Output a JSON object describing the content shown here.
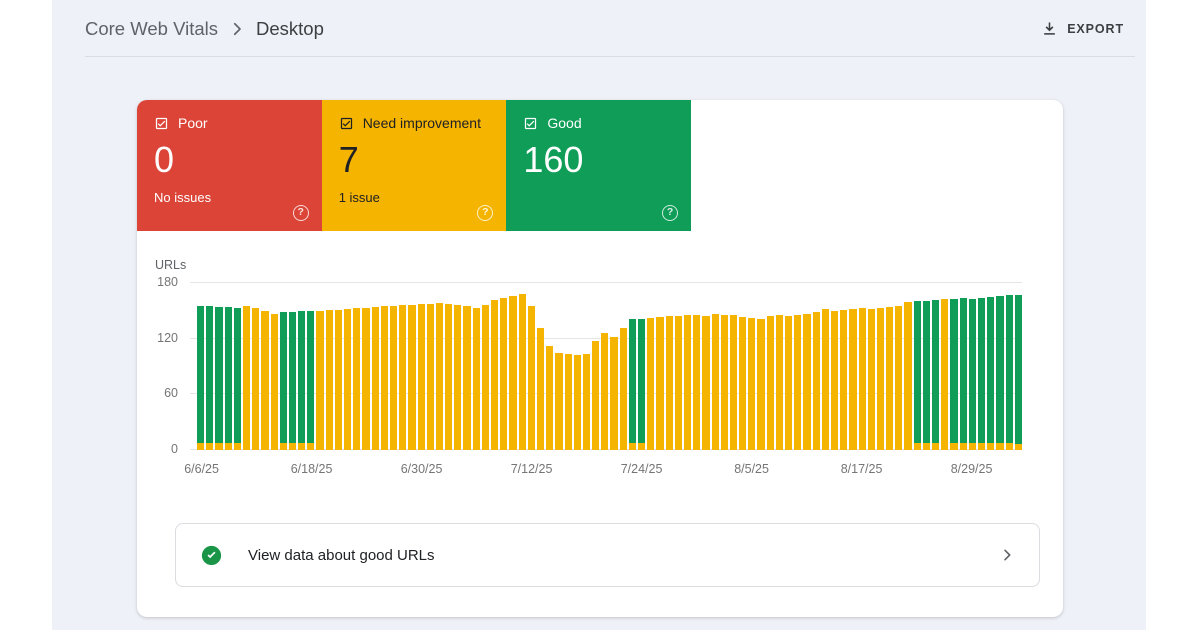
{
  "header": {
    "breadcrumb": {
      "root": "Core Web Vitals",
      "current": "Desktop"
    },
    "export_label": "EXPORT"
  },
  "summary_cards": [
    {
      "id": "poor",
      "label": "Poor",
      "value": "0",
      "sub": "No issues",
      "bg": "#db4437",
      "text": "#ffffff",
      "checkbox_color": "#ffffff"
    },
    {
      "id": "need-improvement",
      "label": "Need improvement",
      "value": "7",
      "sub": "1 issue",
      "bg": "#f4b400",
      "text": "#202124",
      "checkbox_color": "#202124"
    },
    {
      "id": "good",
      "label": "Good",
      "value": "160",
      "sub": "",
      "bg": "#0f9d58",
      "text": "#ffffff",
      "checkbox_color": "#ffffff"
    }
  ],
  "chart_data": {
    "type": "bar",
    "stacked": true,
    "ylabel": "URLs",
    "ylim": [
      0,
      180
    ],
    "yticks": [
      0,
      60,
      120,
      180
    ],
    "grid": true,
    "x_tick_every": 12,
    "x_tick_labels": [
      "6/6/25",
      "6/18/25",
      "6/30/25",
      "7/12/25",
      "7/24/25",
      "8/5/25",
      "8/17/25",
      "8/29/25"
    ],
    "x": [
      "6/6/25",
      "6/7/25",
      "6/8/25",
      "6/9/25",
      "6/10/25",
      "6/11/25",
      "6/12/25",
      "6/13/25",
      "6/14/25",
      "6/15/25",
      "6/16/25",
      "6/17/25",
      "6/18/25",
      "6/19/25",
      "6/20/25",
      "6/21/25",
      "6/22/25",
      "6/23/25",
      "6/24/25",
      "6/25/25",
      "6/26/25",
      "6/27/25",
      "6/28/25",
      "6/29/25",
      "6/30/25",
      "7/1/25",
      "7/2/25",
      "7/3/25",
      "7/4/25",
      "7/5/25",
      "7/6/25",
      "7/7/25",
      "7/8/25",
      "7/9/25",
      "7/10/25",
      "7/11/25",
      "7/12/25",
      "7/13/25",
      "7/14/25",
      "7/15/25",
      "7/16/25",
      "7/17/25",
      "7/18/25",
      "7/19/25",
      "7/20/25",
      "7/21/25",
      "7/22/25",
      "7/23/25",
      "7/24/25",
      "7/25/25",
      "7/26/25",
      "7/27/25",
      "7/28/25",
      "7/29/25",
      "7/30/25",
      "7/31/25",
      "8/1/25",
      "8/2/25",
      "8/3/25",
      "8/4/25",
      "8/5/25",
      "8/6/25",
      "8/7/25",
      "8/8/25",
      "8/9/25",
      "8/10/25",
      "8/11/25",
      "8/12/25",
      "8/13/25",
      "8/14/25",
      "8/15/25",
      "8/16/25",
      "8/17/25",
      "8/18/25",
      "8/19/25",
      "8/20/25",
      "8/21/25",
      "8/22/25",
      "8/23/25",
      "8/24/25",
      "8/25/25",
      "8/26/25",
      "8/27/25",
      "8/28/25",
      "8/29/25",
      "8/30/25",
      "8/31/25",
      "9/1/25",
      "9/2/25",
      "9/3/25"
    ],
    "series": [
      {
        "name": "Good",
        "color": "#0f9d58",
        "values": [
          147,
          147,
          146,
          146,
          145,
          0,
          0,
          0,
          0,
          141,
          141,
          142,
          142,
          0,
          0,
          0,
          0,
          0,
          0,
          0,
          0,
          0,
          0,
          0,
          0,
          0,
          0,
          0,
          0,
          0,
          0,
          0,
          0,
          0,
          0,
          0,
          0,
          0,
          0,
          0,
          0,
          0,
          0,
          0,
          0,
          0,
          0,
          133,
          133,
          0,
          0,
          0,
          0,
          0,
          0,
          0,
          0,
          0,
          0,
          0,
          0,
          0,
          0,
          0,
          0,
          0,
          0,
          0,
          0,
          0,
          0,
          0,
          0,
          0,
          0,
          0,
          0,
          0,
          153,
          153,
          154,
          0,
          155,
          156,
          155,
          156,
          157,
          158,
          159,
          160
        ]
      },
      {
        "name": "Need improvement",
        "color": "#f4b400",
        "values": [
          8,
          8,
          8,
          8,
          8,
          155,
          153,
          150,
          147,
          8,
          8,
          8,
          8,
          150,
          151,
          151,
          152,
          153,
          153,
          154,
          155,
          155,
          156,
          156,
          157,
          157,
          158,
          157,
          156,
          155,
          153,
          156,
          162,
          164,
          166,
          168,
          155,
          132,
          112,
          105,
          103,
          102,
          104,
          118,
          126,
          122,
          131,
          8,
          8,
          142,
          143,
          144,
          144,
          145,
          146,
          144,
          147,
          146,
          145,
          143,
          142,
          141,
          144,
          145,
          144,
          146,
          147,
          149,
          152,
          150,
          151,
          152,
          153,
          152,
          153,
          154,
          155,
          159,
          8,
          8,
          8,
          163,
          8,
          8,
          8,
          8,
          8,
          8,
          8,
          7
        ]
      }
    ]
  },
  "footer": {
    "text": "View data about good URLs",
    "icon_color": "#1a9447"
  },
  "colors": {
    "app_bg": "#eef1f7",
    "border": "#dadce0",
    "text_primary": "#202124",
    "text_secondary": "#5f6368"
  }
}
